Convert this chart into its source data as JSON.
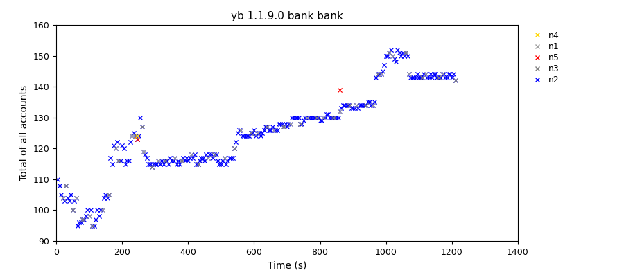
{
  "title": "yb 1.1.9.0 bank bank",
  "xlabel": "Time (s)",
  "ylabel": "Total of all accounts",
  "xlim": [
    0,
    1400
  ],
  "ylim": [
    90,
    160
  ],
  "xticks": [
    0,
    200,
    400,
    600,
    800,
    1000,
    1200,
    1400
  ],
  "yticks": [
    90,
    100,
    110,
    120,
    130,
    140,
    150,
    160
  ],
  "series": {
    "n2": {
      "color": "#0000ff",
      "marker": "x",
      "zorder": 2,
      "data": [
        [
          5,
          110
        ],
        [
          10,
          108
        ],
        [
          15,
          105
        ],
        [
          20,
          104
        ],
        [
          25,
          103
        ],
        [
          30,
          108
        ],
        [
          35,
          104
        ],
        [
          40,
          103
        ],
        [
          45,
          105
        ],
        [
          50,
          100
        ],
        [
          55,
          103
        ],
        [
          60,
          104
        ],
        [
          65,
          95
        ],
        [
          70,
          96
        ],
        [
          75,
          96
        ],
        [
          80,
          97
        ],
        [
          85,
          97
        ],
        [
          90,
          98
        ],
        [
          95,
          100
        ],
        [
          100,
          98
        ],
        [
          105,
          100
        ],
        [
          110,
          95
        ],
        [
          115,
          95
        ],
        [
          120,
          97
        ],
        [
          125,
          100
        ],
        [
          130,
          98
        ],
        [
          135,
          100
        ],
        [
          140,
          100
        ],
        [
          145,
          104
        ],
        [
          150,
          105
        ],
        [
          155,
          104
        ],
        [
          160,
          105
        ],
        [
          165,
          117
        ],
        [
          170,
          115
        ],
        [
          175,
          121
        ],
        [
          180,
          120
        ],
        [
          185,
          122
        ],
        [
          190,
          116
        ],
        [
          195,
          116
        ],
        [
          200,
          121
        ],
        [
          205,
          120
        ],
        [
          210,
          115
        ],
        [
          215,
          116
        ],
        [
          220,
          116
        ],
        [
          225,
          122
        ],
        [
          230,
          124
        ],
        [
          235,
          125
        ],
        [
          240,
          124
        ],
        [
          245,
          123
        ],
        [
          250,
          124
        ],
        [
          255,
          130
        ],
        [
          260,
          127
        ],
        [
          265,
          119
        ],
        [
          270,
          118
        ],
        [
          275,
          117
        ],
        [
          280,
          115
        ],
        [
          285,
          115
        ],
        [
          290,
          114
        ],
        [
          295,
          115
        ],
        [
          300,
          115
        ],
        [
          305,
          115
        ],
        [
          310,
          116
        ],
        [
          315,
          115
        ],
        [
          320,
          116
        ],
        [
          325,
          115
        ],
        [
          330,
          116
        ],
        [
          335,
          116
        ],
        [
          340,
          115
        ],
        [
          345,
          117
        ],
        [
          350,
          116
        ],
        [
          355,
          116
        ],
        [
          360,
          117
        ],
        [
          365,
          115
        ],
        [
          370,
          116
        ],
        [
          375,
          115
        ],
        [
          380,
          116
        ],
        [
          385,
          117
        ],
        [
          390,
          116
        ],
        [
          395,
          117
        ],
        [
          400,
          116
        ],
        [
          405,
          117
        ],
        [
          410,
          118
        ],
        [
          415,
          117
        ],
        [
          420,
          118
        ],
        [
          425,
          115
        ],
        [
          430,
          115
        ],
        [
          435,
          116
        ],
        [
          440,
          117
        ],
        [
          445,
          117
        ],
        [
          450,
          116
        ],
        [
          455,
          118
        ],
        [
          460,
          117
        ],
        [
          465,
          118
        ],
        [
          470,
          118
        ],
        [
          475,
          117
        ],
        [
          480,
          118
        ],
        [
          485,
          118
        ],
        [
          490,
          116
        ],
        [
          495,
          115
        ],
        [
          500,
          115
        ],
        [
          505,
          116
        ],
        [
          510,
          117
        ],
        [
          515,
          115
        ],
        [
          520,
          116
        ],
        [
          525,
          117
        ],
        [
          530,
          117
        ],
        [
          535,
          117
        ],
        [
          540,
          120
        ],
        [
          545,
          122
        ],
        [
          550,
          125
        ],
        [
          555,
          126
        ],
        [
          560,
          126
        ],
        [
          565,
          124
        ],
        [
          570,
          124
        ],
        [
          575,
          124
        ],
        [
          580,
          124
        ],
        [
          585,
          124
        ],
        [
          590,
          125
        ],
        [
          595,
          125
        ],
        [
          600,
          126
        ],
        [
          605,
          124
        ],
        [
          610,
          125
        ],
        [
          615,
          125
        ],
        [
          620,
          124
        ],
        [
          625,
          125
        ],
        [
          630,
          126
        ],
        [
          635,
          127
        ],
        [
          640,
          127
        ],
        [
          645,
          126
        ],
        [
          650,
          126
        ],
        [
          655,
          127
        ],
        [
          660,
          126
        ],
        [
          665,
          126
        ],
        [
          670,
          126
        ],
        [
          675,
          128
        ],
        [
          680,
          128
        ],
        [
          685,
          128
        ],
        [
          690,
          127
        ],
        [
          695,
          128
        ],
        [
          700,
          127
        ],
        [
          705,
          128
        ],
        [
          710,
          128
        ],
        [
          715,
          130
        ],
        [
          720,
          130
        ],
        [
          725,
          130
        ],
        [
          730,
          130
        ],
        [
          735,
          130
        ],
        [
          740,
          128
        ],
        [
          745,
          128
        ],
        [
          750,
          129
        ],
        [
          755,
          130
        ],
        [
          760,
          130
        ],
        [
          765,
          130
        ],
        [
          770,
          130
        ],
        [
          775,
          130
        ],
        [
          780,
          130
        ],
        [
          785,
          130
        ],
        [
          790,
          130
        ],
        [
          795,
          130
        ],
        [
          800,
          129
        ],
        [
          805,
          129
        ],
        [
          810,
          130
        ],
        [
          815,
          130
        ],
        [
          820,
          131
        ],
        [
          825,
          131
        ],
        [
          830,
          130
        ],
        [
          835,
          130
        ],
        [
          840,
          130
        ],
        [
          845,
          130
        ],
        [
          850,
          130
        ],
        [
          855,
          130
        ],
        [
          860,
          132
        ],
        [
          865,
          133
        ],
        [
          870,
          134
        ],
        [
          875,
          134
        ],
        [
          880,
          134
        ],
        [
          885,
          134
        ],
        [
          890,
          134
        ],
        [
          895,
          133
        ],
        [
          900,
          133
        ],
        [
          905,
          133
        ],
        [
          910,
          134
        ],
        [
          915,
          133
        ],
        [
          920,
          134
        ],
        [
          925,
          134
        ],
        [
          930,
          134
        ],
        [
          935,
          134
        ],
        [
          940,
          134
        ],
        [
          945,
          135
        ],
        [
          950,
          135
        ],
        [
          955,
          134
        ],
        [
          960,
          134
        ],
        [
          965,
          135
        ],
        [
          970,
          143
        ],
        [
          975,
          144
        ],
        [
          980,
          144
        ],
        [
          985,
          144
        ],
        [
          990,
          145
        ],
        [
          995,
          147
        ],
        [
          1000,
          150
        ],
        [
          1005,
          150
        ],
        [
          1010,
          151
        ],
        [
          1015,
          152
        ],
        [
          1020,
          150
        ],
        [
          1025,
          149
        ],
        [
          1030,
          148
        ],
        [
          1035,
          152
        ],
        [
          1040,
          151
        ],
        [
          1045,
          150
        ],
        [
          1050,
          151
        ],
        [
          1055,
          150
        ],
        [
          1060,
          151
        ],
        [
          1065,
          150
        ],
        [
          1070,
          144
        ],
        [
          1075,
          143
        ],
        [
          1080,
          143
        ],
        [
          1085,
          143
        ],
        [
          1090,
          143
        ],
        [
          1095,
          144
        ],
        [
          1100,
          143
        ],
        [
          1105,
          143
        ],
        [
          1110,
          143
        ],
        [
          1115,
          144
        ],
        [
          1120,
          144
        ],
        [
          1125,
          143
        ],
        [
          1130,
          143
        ],
        [
          1135,
          144
        ],
        [
          1140,
          143
        ],
        [
          1145,
          144
        ],
        [
          1150,
          144
        ],
        [
          1155,
          143
        ],
        [
          1160,
          143
        ],
        [
          1165,
          143
        ],
        [
          1170,
          144
        ],
        [
          1175,
          144
        ],
        [
          1180,
          143
        ],
        [
          1185,
          143
        ],
        [
          1190,
          144
        ],
        [
          1195,
          144
        ],
        [
          1200,
          143
        ],
        [
          1205,
          144
        ],
        [
          1210,
          142
        ]
      ]
    },
    "n3": {
      "color": "#808080",
      "marker": "x",
      "zorder": 3,
      "data": [
        [
          30,
          108
        ],
        [
          50,
          100
        ],
        [
          80,
          97
        ],
        [
          110,
          95
        ],
        [
          160,
          105
        ],
        [
          190,
          116
        ],
        [
          240,
          124
        ],
        [
          260,
          127
        ],
        [
          290,
          114
        ],
        [
          330,
          116
        ],
        [
          380,
          116
        ],
        [
          430,
          115
        ],
        [
          480,
          118
        ],
        [
          540,
          120
        ],
        [
          590,
          125
        ],
        [
          640,
          127
        ],
        [
          690,
          127
        ],
        [
          740,
          128
        ],
        [
          790,
          130
        ],
        [
          840,
          130
        ],
        [
          890,
          134
        ],
        [
          940,
          134
        ],
        [
          975,
          144
        ],
        [
          1010,
          151
        ],
        [
          1060,
          151
        ],
        [
          1110,
          143
        ],
        [
          1160,
          143
        ],
        [
          1210,
          142
        ]
      ]
    },
    "n1": {
      "color": "#a0a0a0",
      "marker": "x",
      "zorder": 4,
      "data": [
        [
          20,
          104
        ],
        [
          60,
          104
        ],
        [
          100,
          98
        ],
        [
          140,
          100
        ],
        [
          180,
          120
        ],
        [
          230,
          124
        ],
        [
          265,
          119
        ],
        [
          310,
          116
        ],
        [
          360,
          117
        ],
        [
          410,
          118
        ],
        [
          460,
          117
        ],
        [
          510,
          117
        ],
        [
          560,
          126
        ],
        [
          610,
          125
        ],
        [
          660,
          126
        ],
        [
          710,
          128
        ],
        [
          760,
          130
        ],
        [
          810,
          130
        ],
        [
          860,
          132
        ],
        [
          910,
          134
        ],
        [
          960,
          134
        ],
        [
          985,
          144
        ],
        [
          1020,
          150
        ],
        [
          1070,
          144
        ],
        [
          1120,
          144
        ],
        [
          1170,
          144
        ]
      ]
    },
    "n5": {
      "color": "#ff0000",
      "marker": "x",
      "zorder": 5,
      "data": [
        [
          245,
          123
        ],
        [
          860,
          139
        ]
      ]
    },
    "n4": {
      "color": "#ffd700",
      "marker": "x",
      "zorder": 6,
      "data": [
        [
          245,
          124
        ]
      ]
    }
  },
  "legend_order": [
    "n4",
    "n1",
    "n5",
    "n3",
    "n2"
  ],
  "legend_colors": {
    "n4": "#ffd700",
    "n1": "#a0a0a0",
    "n5": "#ff0000",
    "n3": "#808080",
    "n2": "#0000ff"
  },
  "figsize": [
    9.0,
    4.0
  ],
  "dpi": 100,
  "bg_color": "#ffffff",
  "title_fontsize": 11,
  "axis_fontsize": 10,
  "tick_fontsize": 9,
  "legend_fontsize": 9,
  "marker_size": 20,
  "marker_linewidth": 0.9
}
